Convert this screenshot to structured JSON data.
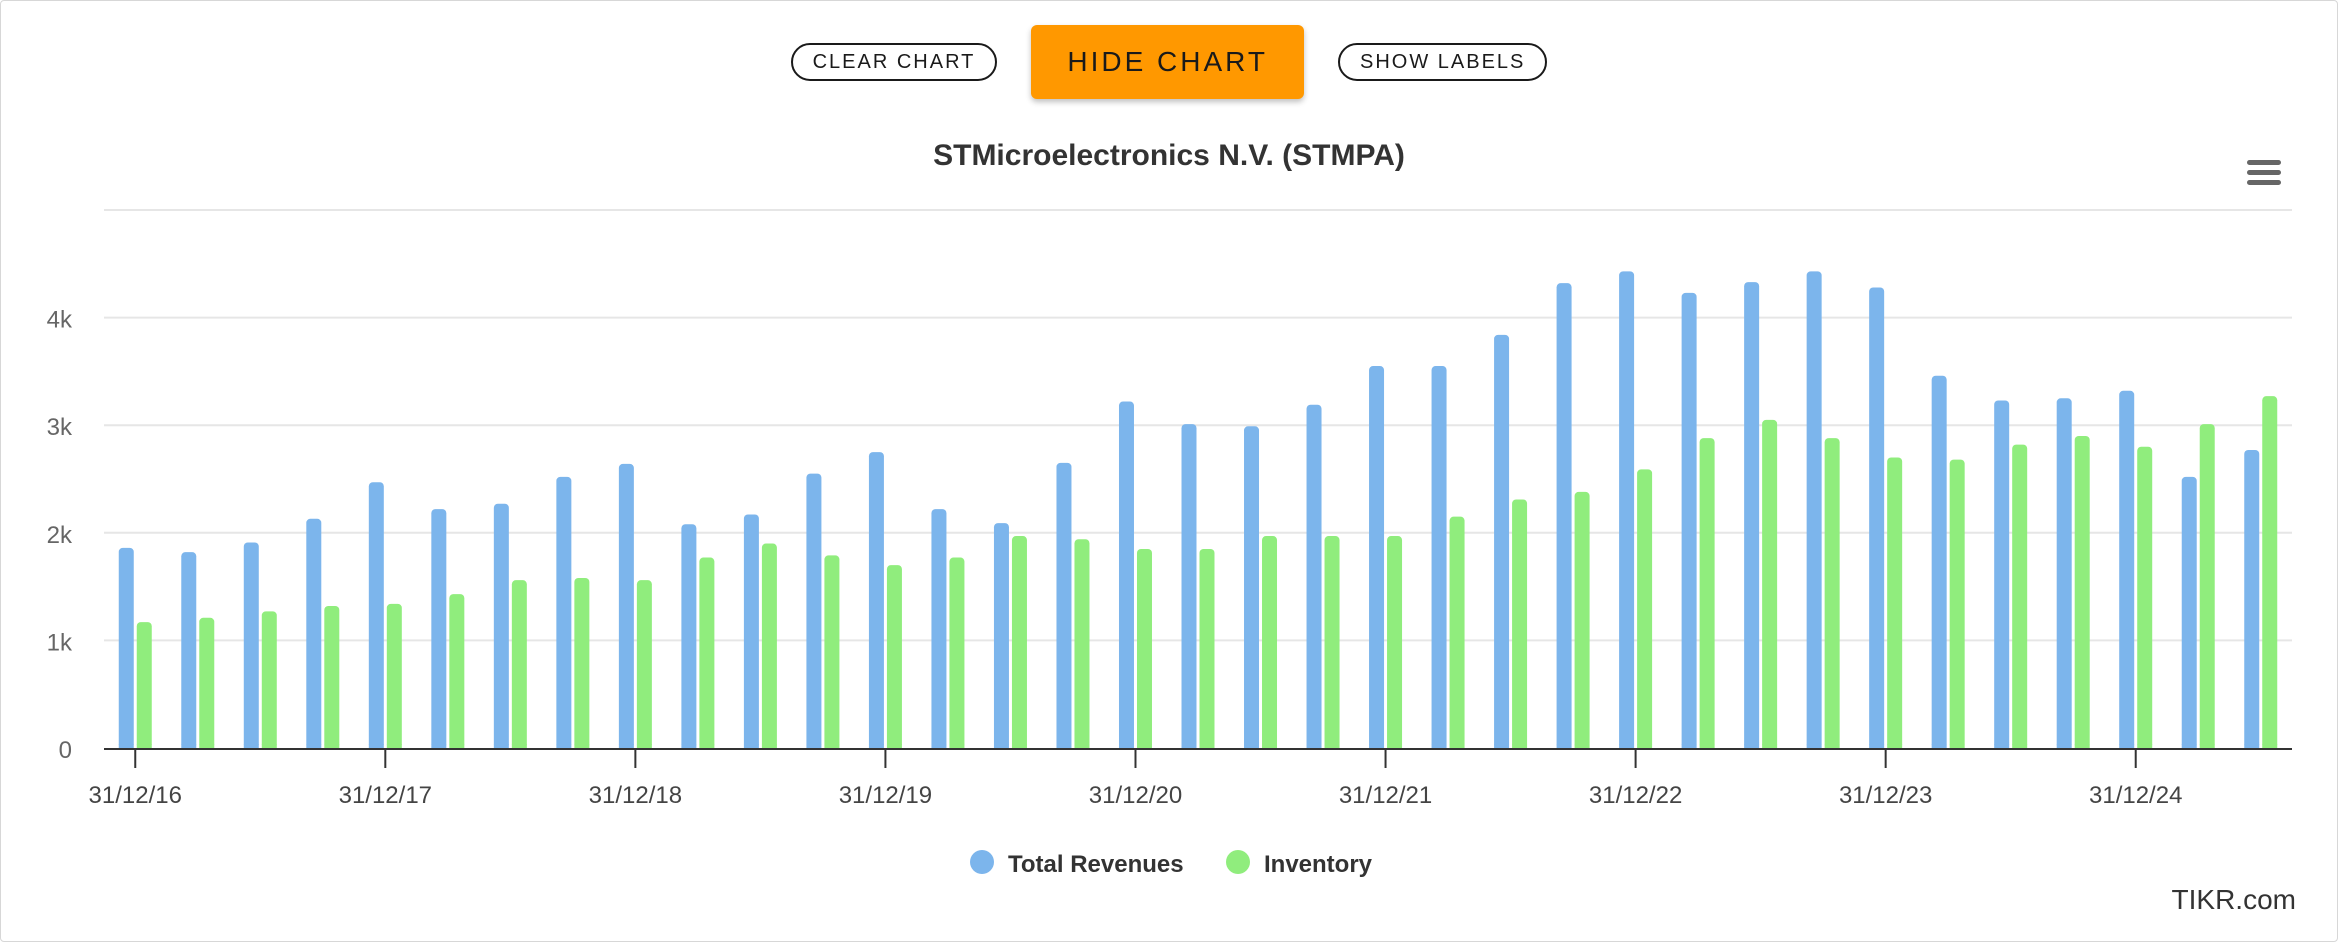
{
  "toolbar": {
    "clear_label": "CLEAR CHART",
    "hide_label": "HIDE CHART",
    "labels_label": "SHOW LABELS"
  },
  "watermark": "TIKR.com",
  "colors": {
    "accent": "#ff9800",
    "revenues": "#7cb5ec",
    "inventory": "#90ed7d"
  },
  "chart_data": {
    "type": "bar",
    "title": "STMicroelectronics N.V. (STMPA)",
    "xlabel": "",
    "ylabel": "",
    "ylim": [
      0,
      5000
    ],
    "yticks": [
      {
        "value": 0,
        "label": "0"
      },
      {
        "value": 1000,
        "label": "1k"
      },
      {
        "value": 2000,
        "label": "2k"
      },
      {
        "value": 3000,
        "label": "3k"
      },
      {
        "value": 4000,
        "label": "4k"
      },
      {
        "value": 5000,
        "label": ""
      }
    ],
    "categories": [
      "31/12/16",
      "31/03/17",
      "30/06/17",
      "30/09/17",
      "31/12/17",
      "31/03/18",
      "30/06/18",
      "30/09/18",
      "31/12/18",
      "31/03/19",
      "30/06/19",
      "30/09/19",
      "31/12/19",
      "31/03/20",
      "30/06/20",
      "30/09/20",
      "31/12/20",
      "31/03/21",
      "30/06/21",
      "30/09/21",
      "31/12/21",
      "31/03/22",
      "30/06/22",
      "30/09/22",
      "31/12/22",
      "31/03/23",
      "30/06/23",
      "30/09/23",
      "31/12/23",
      "31/03/24",
      "30/06/24",
      "30/09/24",
      "31/12/24",
      "31/03/25",
      "30/06/25"
    ],
    "xtick_labels": [
      "31/12/16",
      "31/12/17",
      "31/12/18",
      "31/12/19",
      "31/12/20",
      "31/12/21",
      "31/12/22",
      "31/12/23",
      "31/12/24"
    ],
    "xtick_indices": [
      0,
      4,
      8,
      12,
      16,
      20,
      24,
      28,
      32
    ],
    "series": [
      {
        "name": "Total Revenues",
        "color": "#7cb5ec",
        "values": [
          1860,
          1820,
          1910,
          2130,
          2470,
          2220,
          2270,
          2520,
          2640,
          2080,
          2170,
          2550,
          2750,
          2220,
          2090,
          2650,
          3220,
          3010,
          2990,
          3190,
          3550,
          3550,
          3840,
          4320,
          4430,
          4230,
          4330,
          4430,
          4280,
          3460,
          3230,
          3250,
          3320,
          2520,
          2770
        ]
      },
      {
        "name": "Inventory",
        "color": "#90ed7d",
        "values": [
          1170,
          1210,
          1270,
          1320,
          1340,
          1430,
          1560,
          1580,
          1560,
          1770,
          1900,
          1790,
          1700,
          1770,
          1970,
          1940,
          1850,
          1850,
          1970,
          1970,
          1970,
          2150,
          2310,
          2380,
          2590,
          2880,
          3050,
          2880,
          2700,
          2680,
          2820,
          2900,
          2800,
          3010,
          3270
        ]
      }
    ],
    "grid": true,
    "legend": "bottom-center"
  }
}
